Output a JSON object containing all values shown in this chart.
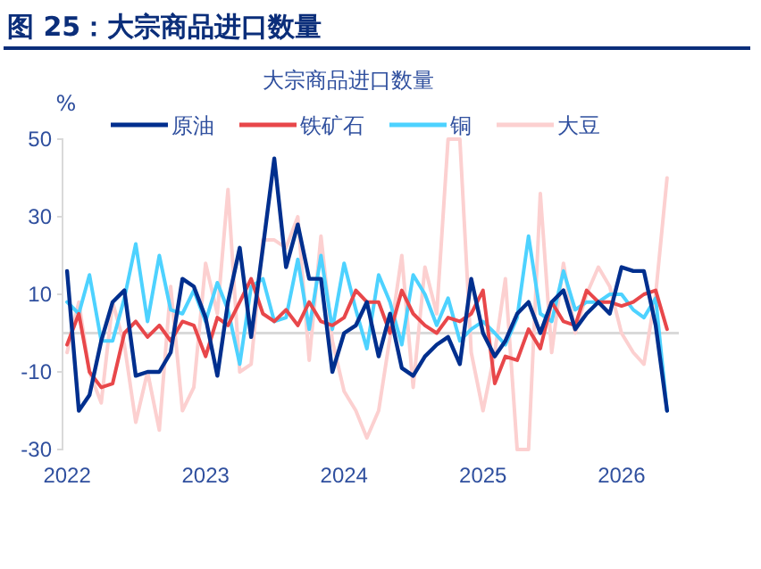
{
  "chart_data": {
    "type": "line",
    "title": "图 25：大宗商品进口数量",
    "subtitle": "大宗商品进口数量",
    "ylabel": "%",
    "x": [
      "2022-01",
      "2022-02",
      "2022-03",
      "2022-04",
      "2022-05",
      "2022-06",
      "2022-07",
      "2022-08",
      "2022-09",
      "2022-10",
      "2022-11",
      "2022-12",
      "2023-01",
      "2023-02",
      "2023-03",
      "2023-04",
      "2023-05",
      "2023-06",
      "2023-07",
      "2023-08",
      "2023-09",
      "2023-10",
      "2023-11",
      "2023-12",
      "2024-01",
      "2024-02",
      "2024-03",
      "2024-04",
      "2024-05",
      "2024-06",
      "2024-07",
      "2024-08",
      "2024-09",
      "2024-10",
      "2024-11",
      "2024-12",
      "2025-01",
      "2025-02",
      "2025-03",
      "2025-04",
      "2025-05",
      "2025-06",
      "2025-07",
      "2025-08",
      "2025-09",
      "2025-10",
      "2025-11",
      "2025-12",
      "2026-01",
      "2026-02",
      "2026-03",
      "2026-04",
      "2026-05"
    ],
    "series": [
      {
        "name": "原油",
        "color": "#002f8e",
        "values": [
          16,
          -20,
          -16,
          -2,
          8,
          11,
          -11,
          -10,
          -10,
          -5,
          14,
          12,
          4,
          -11,
          8,
          22,
          -1,
          22,
          45,
          17,
          28,
          14,
          14,
          -10,
          0,
          2,
          8,
          -6,
          5,
          -9,
          -11,
          -6,
          -3,
          -1,
          -8,
          14,
          0,
          -6,
          -2,
          5,
          8,
          0,
          8,
          11,
          1,
          5,
          8,
          5,
          17,
          16,
          16,
          2,
          -20
        ]
      },
      {
        "name": "铁矿石",
        "color": "#e8474a",
        "values": [
          -3,
          5,
          -10,
          -14,
          -13,
          0,
          3,
          -1,
          2,
          -2,
          3,
          2,
          -6,
          4,
          2,
          8,
          14,
          5,
          3,
          6,
          2,
          8,
          3,
          2,
          4,
          11,
          8,
          8,
          0,
          11,
          5,
          2,
          0,
          4,
          3,
          5,
          11,
          -13,
          -6,
          -7,
          1,
          -4,
          8,
          3,
          2,
          11,
          8,
          8,
          7,
          8,
          10,
          11,
          1
        ]
      },
      {
        "name": "铜",
        "color": "#4dd2ff",
        "values": [
          8,
          5,
          15,
          -2,
          -2,
          9,
          23,
          3,
          20,
          6,
          5,
          11,
          3,
          13,
          6,
          -8,
          12,
          14,
          3,
          4,
          19,
          1,
          20,
          1,
          18,
          6,
          -4,
          15,
          8,
          -3,
          15,
          10,
          2,
          9,
          -2,
          1,
          3,
          0,
          -3,
          4,
          25,
          5,
          3,
          16,
          6,
          8,
          8,
          10,
          10,
          6,
          4,
          9,
          -20
        ]
      },
      {
        "name": "大豆",
        "color": "#fcd0d0",
        "values": [
          -5,
          8,
          -10,
          -18,
          8,
          -3,
          -23,
          -10,
          -25,
          12,
          -20,
          -14,
          18,
          5,
          37,
          -10,
          -8,
          24,
          24,
          22,
          30,
          -7,
          25,
          -2,
          -15,
          -20,
          -27,
          -20,
          -1,
          20,
          -14,
          17,
          5,
          50,
          50,
          -5,
          -20,
          -5,
          14,
          -30,
          -30,
          36,
          -5,
          18,
          0,
          10,
          17,
          12,
          0,
          -5,
          -8,
          10,
          40
        ]
      }
    ],
    "xlim": [
      "2021-12-20",
      "2026-06"
    ],
    "xticks": [
      {
        "value": "2022-01",
        "label": "2022"
      },
      {
        "value": "2023-01",
        "label": "2023"
      },
      {
        "value": "2024-01",
        "label": "2024"
      },
      {
        "value": "2025-01",
        "label": "2025"
      },
      {
        "value": "2026-01",
        "label": "2026"
      }
    ],
    "ylim": [
      -30,
      50
    ],
    "yticks": [
      -30,
      -10,
      10,
      30,
      50
    ],
    "ref_lines": [
      {
        "axis": "y",
        "value": 0,
        "color": "#d9d9d9"
      }
    ],
    "legend": "top",
    "grid": false,
    "marker": "none",
    "line_style": "solid"
  }
}
